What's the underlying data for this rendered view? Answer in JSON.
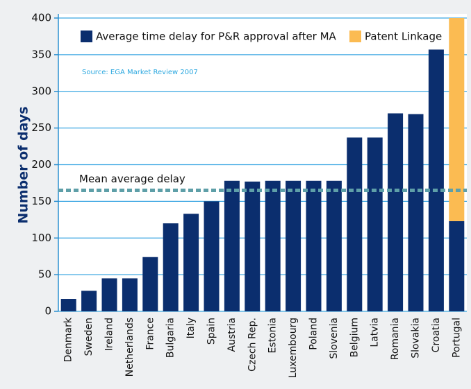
{
  "chart_data": {
    "type": "stacked_bar",
    "y_label": "Number of days",
    "source": "Source: EGA Market Review 2007",
    "annotation": "Mean average delay",
    "mean_value": 165,
    "categories": [
      "Denmark",
      "Sweden",
      "Ireland",
      "Netherlands",
      "France",
      "Bulgaria",
      "Italy",
      "Spain",
      "Austria",
      "Czech Rep.",
      "Estonia",
      "Luxembourg",
      "Poland",
      "Slovenia",
      "Belgium",
      "Latvia",
      "Romania",
      "Slovakia",
      "Croatia",
      "Portugal"
    ],
    "series": [
      {
        "name": "Average time delay for P&R approval after MA",
        "color": "#0b2e6e",
        "values": [
          17,
          28,
          45,
          45,
          74,
          120,
          133,
          150,
          178,
          177,
          178,
          178,
          178,
          178,
          237,
          237,
          270,
          269,
          357,
          123
        ]
      },
      {
        "name": "Patent Linkage",
        "color": "#fbbb52",
        "values": [
          null,
          null,
          null,
          null,
          null,
          null,
          null,
          null,
          null,
          null,
          null,
          null,
          null,
          null,
          null,
          null,
          null,
          null,
          null,
          277
        ]
      }
    ],
    "ylim": [
      0,
      400
    ],
    "yticks": [
      0,
      50,
      100,
      150,
      200,
      250,
      300,
      350,
      400
    ],
    "grid": true
  }
}
